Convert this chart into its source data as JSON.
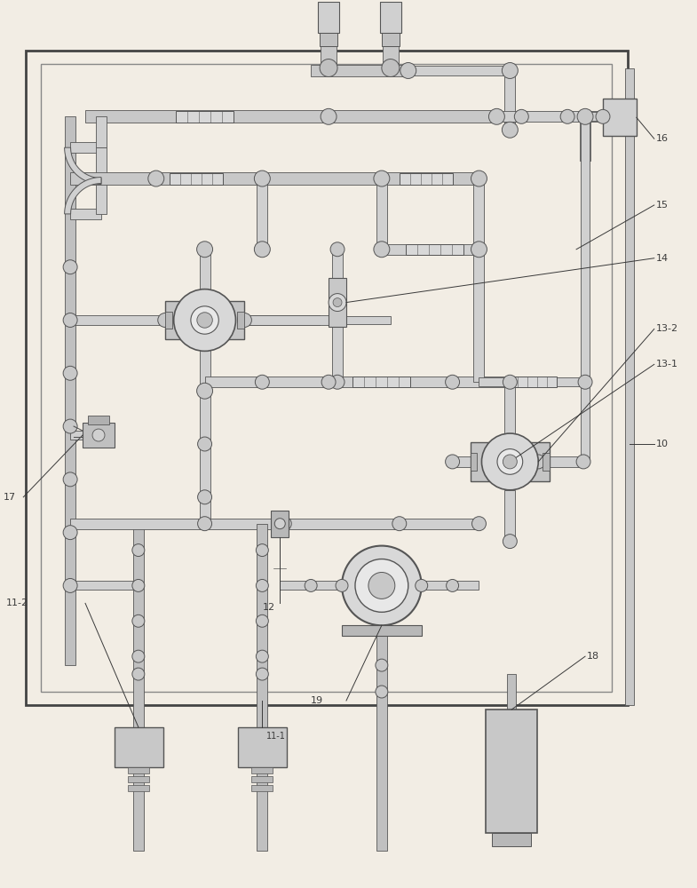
{
  "bg_color": "#f2ede4",
  "line_color": "#3a3a3a",
  "pipe_fill": "#d0d0d0",
  "pipe_edge": "#555555",
  "comp_fill": "#c8c8c8",
  "comp_edge": "#444444",
  "white": "#ffffff",
  "label_color": "#222222"
}
